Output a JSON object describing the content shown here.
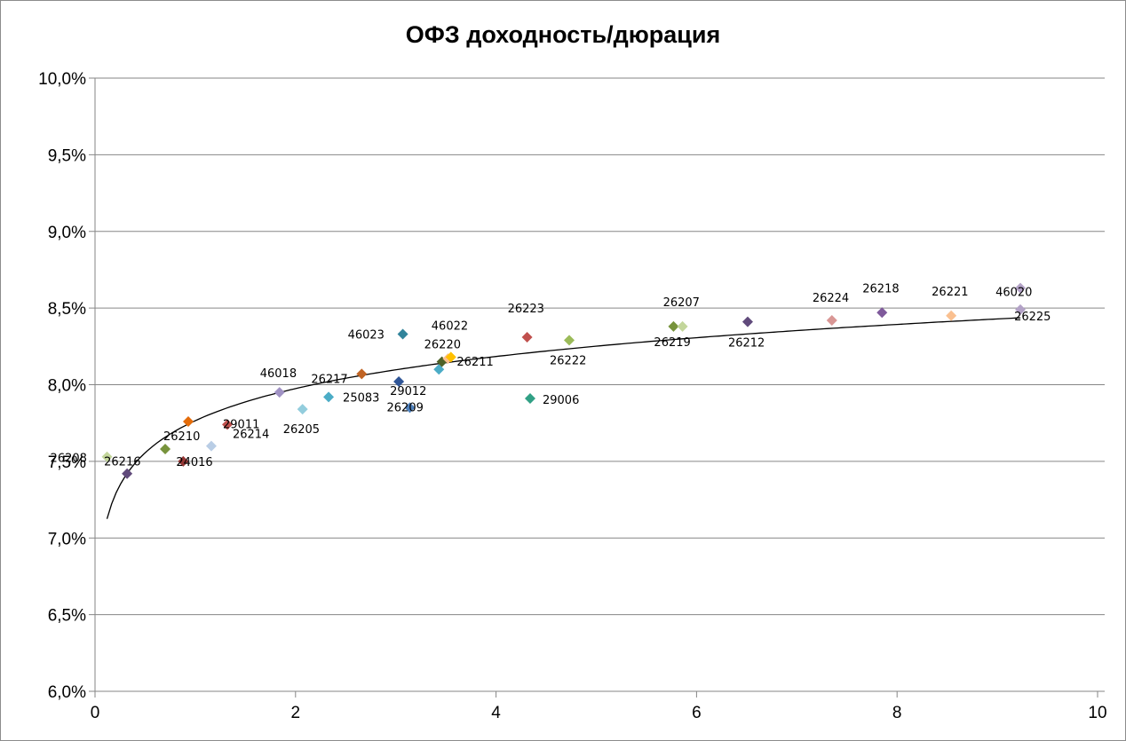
{
  "chart_data": {
    "type": "scatter",
    "title": "ОФЗ доходность/дюрация",
    "xlabel": "",
    "ylabel": "",
    "xlim": [
      0,
      10
    ],
    "ylim": [
      0.06,
      0.1
    ],
    "x_ticks": [
      "0",
      "2",
      "4",
      "6",
      "8",
      "10"
    ],
    "y_ticks": [
      "6,0%",
      "6,5%",
      "7,0%",
      "7,5%",
      "8,0%",
      "8,5%",
      "9,0%",
      "9,5%",
      "10,0%"
    ],
    "grid": "horizontal",
    "legend": "none",
    "points": [
      {
        "label": "26208",
        "x": 0.12,
        "y": 0.0753,
        "color": "#c3d69b"
      },
      {
        "label": "26216",
        "x": 0.32,
        "y": 0.0742,
        "color": "#604a7b"
      },
      {
        "label": "26210",
        "x": 0.7,
        "y": 0.0758,
        "color": "#77933c"
      },
      {
        "label": "24016",
        "x": 0.88,
        "y": 0.075,
        "color": "#953735"
      },
      {
        "label": "",
        "x": 0.93,
        "y": 0.0776,
        "color": "#e46c0a"
      },
      {
        "label": "26214",
        "x": 1.16,
        "y": 0.076,
        "color": "#b9cde5"
      },
      {
        "label": "29011",
        "x": 1.32,
        "y": 0.0774,
        "color": "#c0504d"
      },
      {
        "label": "46018",
        "x": 1.84,
        "y": 0.0795,
        "color": "#a092c4"
      },
      {
        "label": "26205",
        "x": 2.07,
        "y": 0.0784,
        "color": "#93cddd"
      },
      {
        "label": "25083",
        "x": 2.33,
        "y": 0.0792,
        "color": "#4bacc6"
      },
      {
        "label": "26217",
        "x": 2.66,
        "y": 0.0807,
        "color": "#c06424"
      },
      {
        "label": "29012",
        "x": 3.03,
        "y": 0.0802,
        "color": "#2f5597"
      },
      {
        "label": "46023",
        "x": 3.07,
        "y": 0.0833,
        "color": "#31849b"
      },
      {
        "label": "26209",
        "x": 3.14,
        "y": 0.0785,
        "color": "#4f81bd"
      },
      {
        "label": "",
        "x": 3.43,
        "y": 0.081,
        "color": "#4bacc6"
      },
      {
        "label": "26220",
        "x": 3.46,
        "y": 0.0815,
        "color": "#4f6228"
      },
      {
        "label": "26211",
        "x": 3.52,
        "y": 0.0817,
        "color": "#fac090"
      },
      {
        "label": "46022",
        "x": 3.55,
        "y": 0.0818,
        "color": "#ffc000"
      },
      {
        "label": "26223",
        "x": 4.31,
        "y": 0.0831,
        "color": "#c0504d"
      },
      {
        "label": "29006",
        "x": 4.34,
        "y": 0.0791,
        "color": "#31a085"
      },
      {
        "label": "26222",
        "x": 4.73,
        "y": 0.0829,
        "color": "#9bbb59"
      },
      {
        "label": "26219",
        "x": 5.77,
        "y": 0.0838,
        "color": "#77933c"
      },
      {
        "label": "26207",
        "x": 5.86,
        "y": 0.0838,
        "color": "#c3d69b"
      },
      {
        "label": "26212",
        "x": 6.51,
        "y": 0.0841,
        "color": "#604a7b"
      },
      {
        "label": "26224",
        "x": 7.35,
        "y": 0.0842,
        "color": "#d99795"
      },
      {
        "label": "26218",
        "x": 7.85,
        "y": 0.0847,
        "color": "#7f5a9b"
      },
      {
        "label": "26221",
        "x": 8.54,
        "y": 0.0845,
        "color": "#fac090"
      },
      {
        "label": "46020",
        "x": 9.23,
        "y": 0.0863,
        "color": "#b3a2c7"
      },
      {
        "label": "26225",
        "x": 9.23,
        "y": 0.0849,
        "color": "#b3a2c7"
      }
    ],
    "trendline": {
      "type": "logarithmic",
      "color": "#000000",
      "x_start": 0.12,
      "x_end": 9.23
    }
  }
}
